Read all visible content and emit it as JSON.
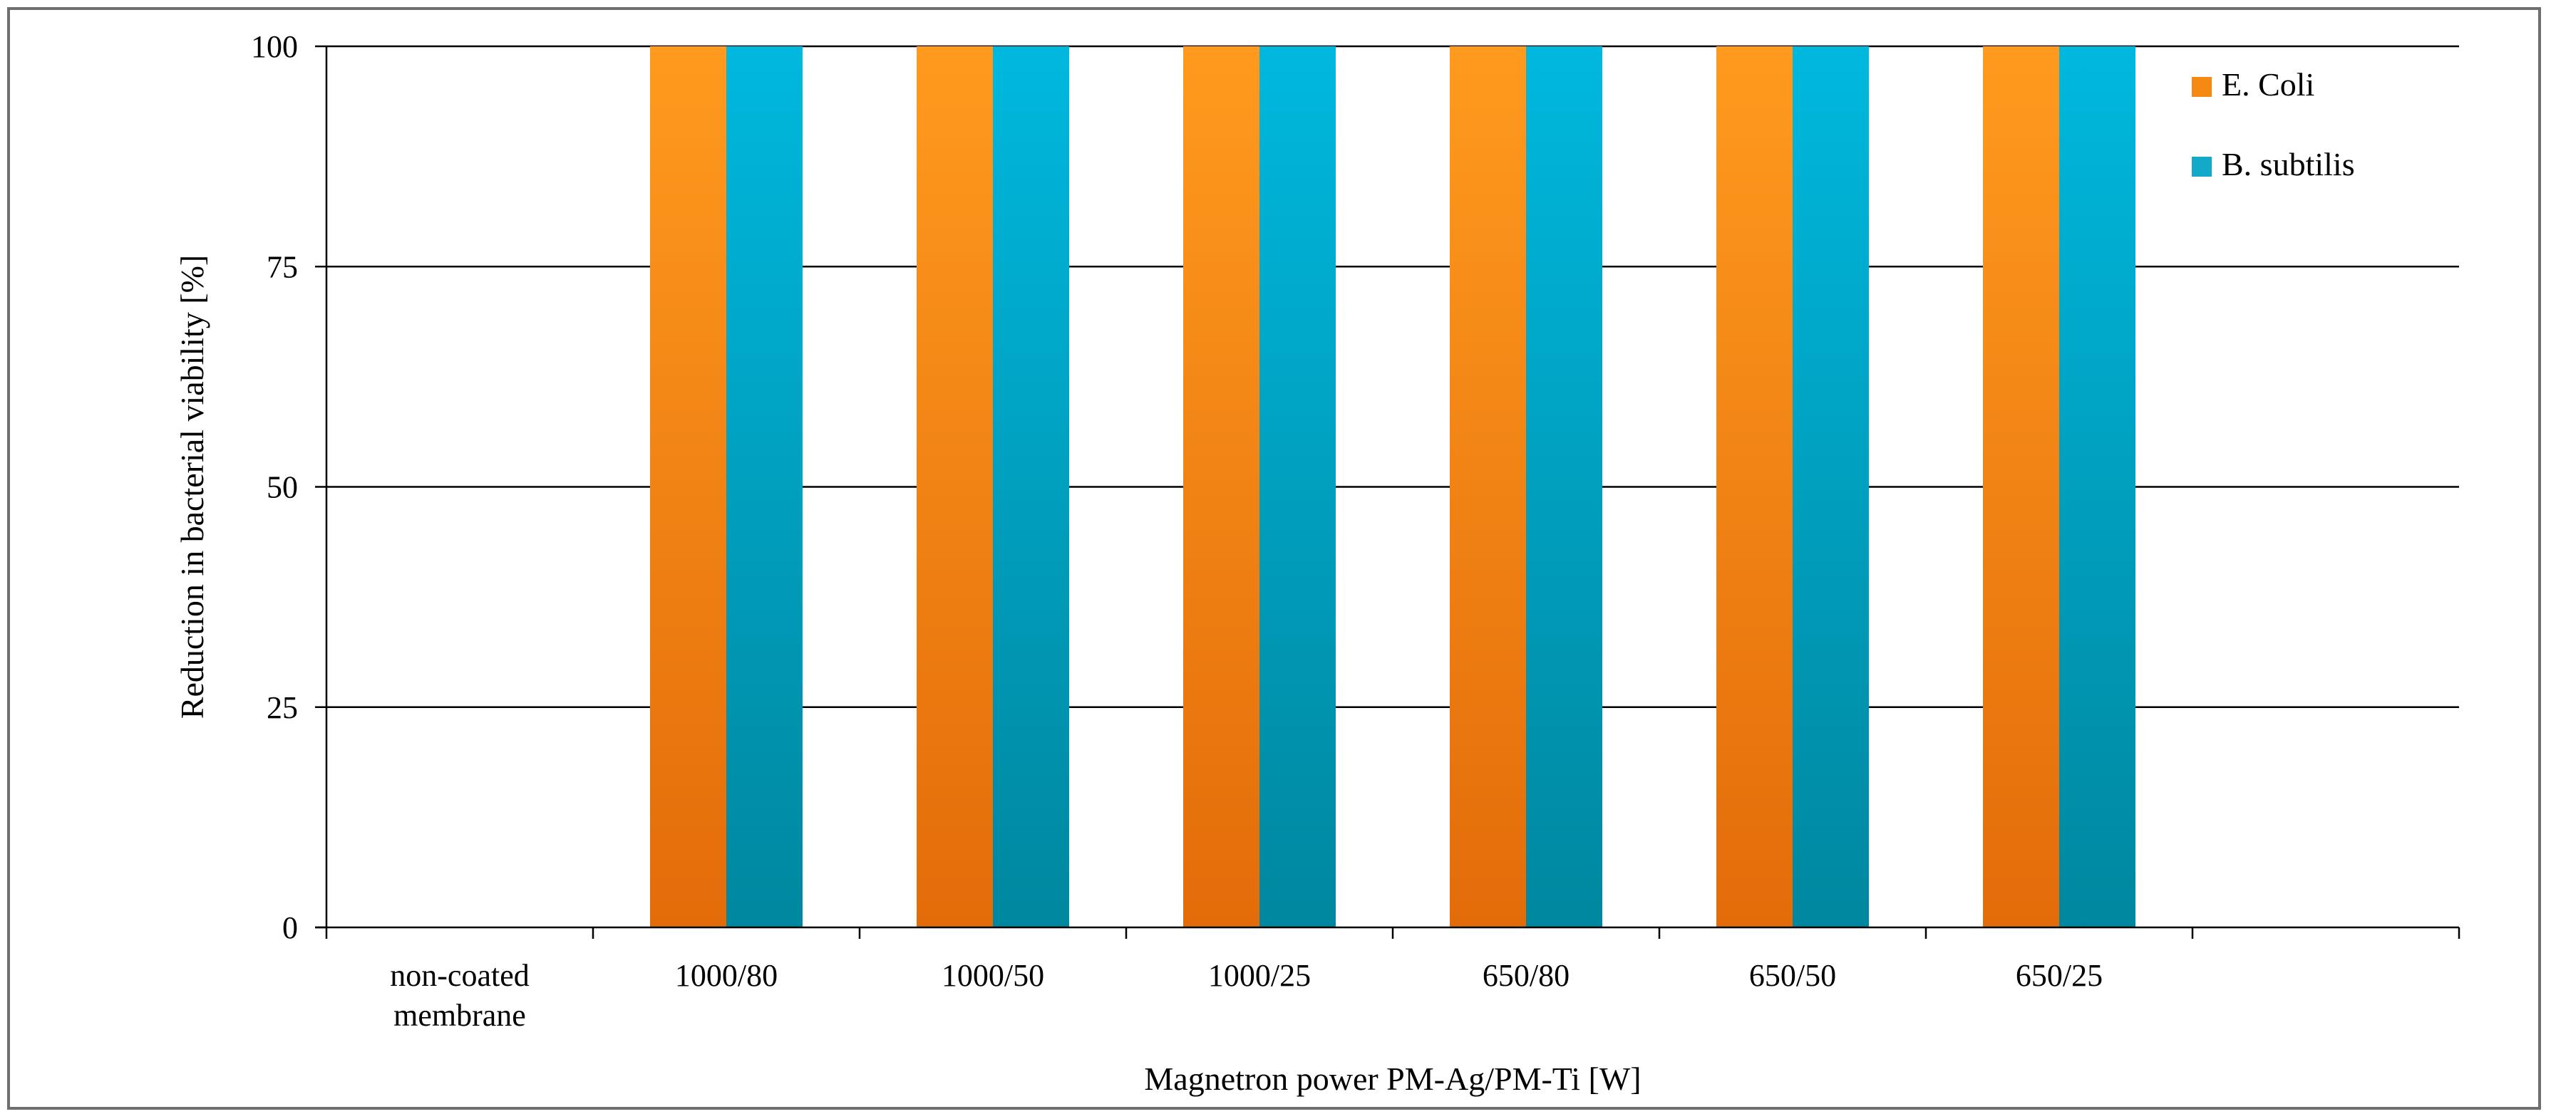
{
  "chart_data": {
    "type": "bar",
    "title": "",
    "xlabel": "Magnetron power PM-Ag/PM-Ti [W]",
    "ylabel": "Reduction in bacterial viability [%]",
    "ylim": [
      0,
      100
    ],
    "yticks": [
      0,
      25,
      50,
      75,
      100
    ],
    "grid": true,
    "legend_position": "top-right",
    "categories": [
      [
        "non-coated",
        "membrane"
      ],
      [
        "1000/80"
      ],
      [
        "1000/50"
      ],
      [
        "1000/25"
      ],
      [
        "650/80"
      ],
      [
        "650/50"
      ],
      [
        "650/25"
      ],
      [
        ""
      ]
    ],
    "series": [
      {
        "name": "E. Coli",
        "color_top": "#ff9a1e",
        "color_bottom": "#e36c0a",
        "legend_color": "#f58a12",
        "values": [
          0,
          100,
          100,
          100,
          100,
          100,
          100,
          null
        ]
      },
      {
        "name": "B. subtilis",
        "color_top": "#00b8de",
        "color_bottom": "#00879f",
        "legend_color": "#13a9c9",
        "values": [
          0,
          100,
          100,
          100,
          100,
          100,
          100,
          null
        ]
      }
    ]
  }
}
